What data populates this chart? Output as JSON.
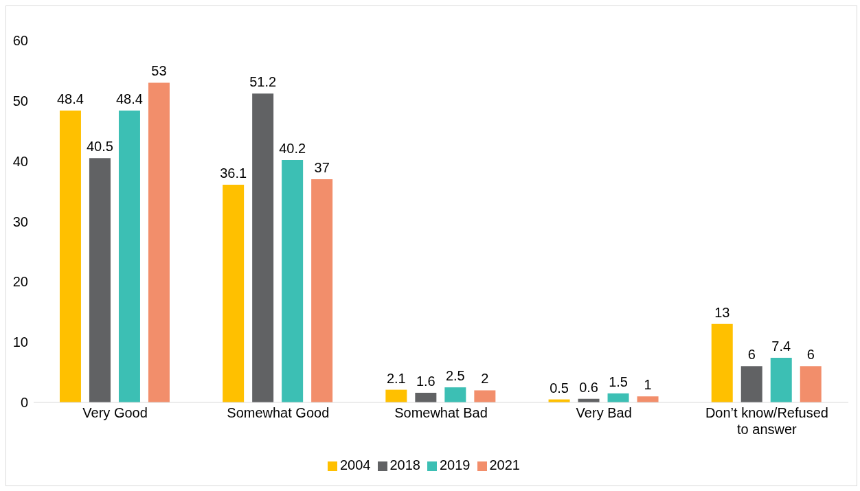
{
  "chart_data": {
    "type": "bar",
    "categories": [
      "Very Good",
      "Somewhat Good",
      "Somewhat Bad",
      "Very Bad",
      "Don’t know/Refused to answer"
    ],
    "series": [
      {
        "name": "2004",
        "color": "#ffc000",
        "values": [
          48.4,
          36.1,
          2.1,
          0.5,
          13
        ]
      },
      {
        "name": "2018",
        "color": "#616264",
        "values": [
          40.5,
          51.2,
          1.6,
          0.6,
          6
        ]
      },
      {
        "name": "2019",
        "color": "#3cbfb4",
        "values": [
          48.4,
          40.2,
          2.5,
          1.5,
          7.4
        ]
      },
      {
        "name": "2021",
        "color": "#f28e6b",
        "values": [
          53,
          37,
          2,
          1,
          6
        ]
      }
    ],
    "ylim": [
      0,
      60
    ],
    "yticks": [
      0,
      10,
      20,
      30,
      40,
      50,
      60
    ],
    "grid": false,
    "legend": "bottom",
    "data_labels": true
  }
}
